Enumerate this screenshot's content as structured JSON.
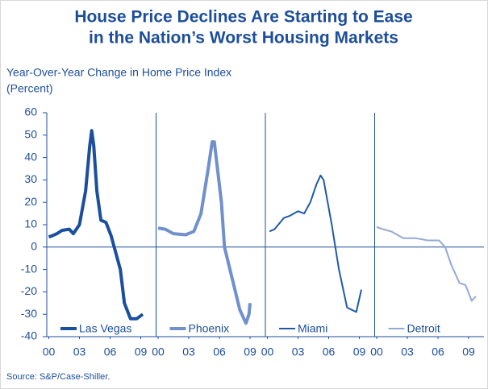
{
  "chart_data": {
    "type": "line",
    "title": [
      "House Price Declines Are Starting to Ease",
      "in the Nation’s Worst Housing Markets"
    ],
    "y_axis_label": [
      "Year-Over-Year Change in Home Price Index",
      "(Percent)"
    ],
    "source": "Source: S&P/Case-Shiller.",
    "ylim": [
      -40,
      60
    ],
    "yticks": [
      -40,
      -30,
      -20,
      -10,
      0,
      10,
      20,
      30,
      40,
      50,
      60
    ],
    "xlim": [
      -0.2,
      10.5
    ],
    "xticks": [
      {
        "value": 0,
        "label": "00"
      },
      {
        "value": 3,
        "label": "03"
      },
      {
        "value": 6,
        "label": "06"
      },
      {
        "value": 9,
        "label": "09"
      }
    ],
    "series": [
      {
        "name": "Las Vegas",
        "color": "#1b4f9e",
        "line_width": 4,
        "x": [
          0,
          0.3,
          0.8,
          1.3,
          2.0,
          2.4,
          3.0,
          3.6,
          4.0,
          4.2,
          4.4,
          4.7,
          5.1,
          5.6,
          6.1,
          6.4,
          7.0,
          7.4,
          8.0,
          8.6,
          9.2
        ],
        "values": [
          4.5,
          5,
          6,
          7.5,
          8,
          6,
          10,
          25,
          45,
          52,
          45,
          25,
          12,
          11,
          5,
          0,
          -10,
          -25,
          -32,
          -32,
          -30
        ]
      },
      {
        "name": "Phoenix",
        "color": "#7090cc",
        "line_width": 4,
        "x": [
          0,
          0.7,
          1.5,
          2.7,
          3.5,
          4.2,
          4.9,
          5.3,
          5.5,
          6.2,
          6.5,
          7.3,
          8.0,
          8.6,
          8.9,
          9.0
        ],
        "values": [
          8.5,
          8,
          6,
          5.5,
          7,
          15,
          35,
          47,
          47,
          20,
          0,
          -15,
          -28,
          -34,
          -30,
          -25
        ]
      },
      {
        "name": "Miami",
        "color": "#1f5aa8",
        "line_width": 2,
        "x": [
          0.2,
          0.7,
          1.6,
          2.2,
          3.0,
          3.6,
          4.2,
          4.8,
          5.2,
          5.5,
          6.3,
          7.0,
          7.8,
          8.7,
          9.2
        ],
        "values": [
          7,
          8,
          13,
          14,
          16,
          15,
          20,
          28,
          32,
          30,
          10,
          -10,
          -27,
          -29,
          -19
        ]
      },
      {
        "name": "Detroit",
        "color": "#93a9d8",
        "line_width": 2,
        "x": [
          0,
          0.6,
          1.4,
          2.6,
          3.8,
          5.0,
          6.1,
          6.7,
          7.3,
          8.1,
          8.7,
          9.3,
          9.7
        ],
        "values": [
          9,
          8,
          7,
          4,
          4,
          3,
          3,
          0,
          -8,
          -16,
          -17,
          -24,
          -22
        ]
      }
    ]
  }
}
